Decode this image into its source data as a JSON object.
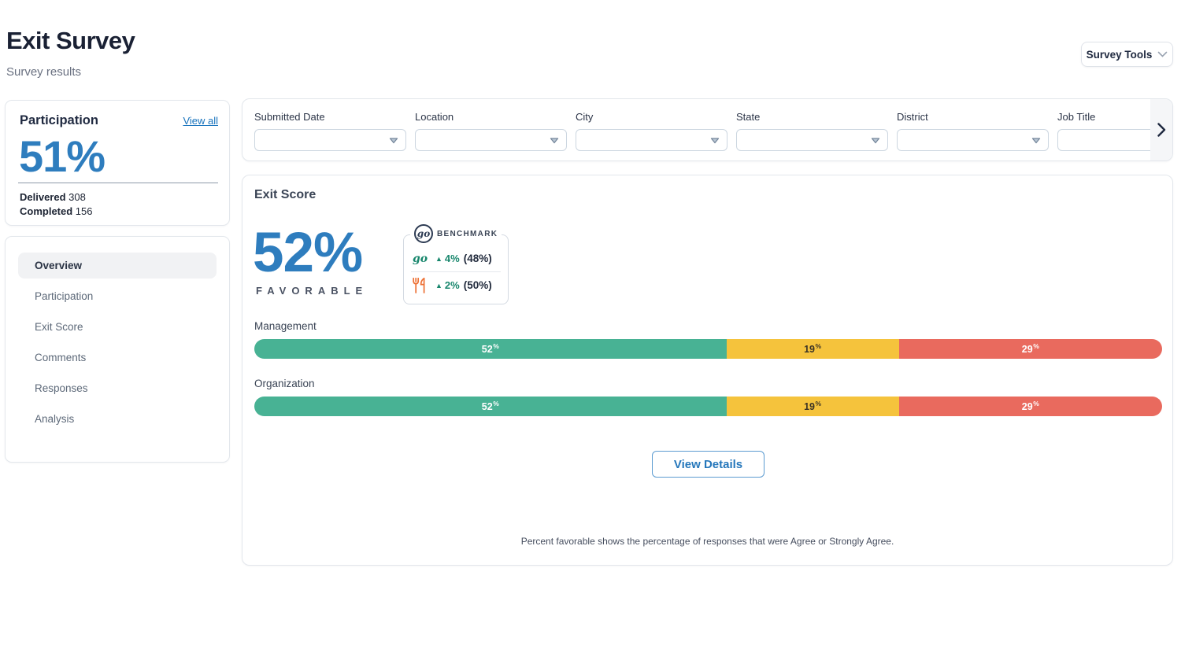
{
  "page": {
    "title": "Exit Survey",
    "subtitle": "Survey results"
  },
  "toolbar": {
    "survey_tools_label": "Survey Tools"
  },
  "participation": {
    "title": "Participation",
    "view_all": "View all",
    "percent": "51%",
    "delivered_label": "Delivered",
    "delivered_value": "308",
    "completed_label": "Completed",
    "completed_value": "156"
  },
  "sidebar": {
    "active_item": "Overview",
    "items": [
      {
        "label": "Overview"
      },
      {
        "label": "Participation"
      },
      {
        "label": "Exit Score"
      },
      {
        "label": "Comments"
      },
      {
        "label": "Responses"
      },
      {
        "label": "Analysis"
      }
    ]
  },
  "filters": {
    "fields": [
      {
        "label": "Submitted Date",
        "value": ""
      },
      {
        "label": "Location",
        "value": ""
      },
      {
        "label": "City",
        "value": ""
      },
      {
        "label": "State",
        "value": ""
      },
      {
        "label": "District",
        "value": ""
      },
      {
        "label": "Job Title",
        "value": ""
      }
    ]
  },
  "exit_score": {
    "title": "Exit Score",
    "score_value": "52%",
    "score_caption": "FAVORABLE",
    "benchmark": {
      "heading": "BENCHMARK",
      "logo_text": "go",
      "rows": [
        {
          "icon": "go-logo",
          "icon_text": "go",
          "delta": "4%",
          "benchmark_value": "(48%)"
        },
        {
          "icon": "fork-knife-icon",
          "delta": "2%",
          "benchmark_value": "(50%)"
        }
      ]
    },
    "bars": [
      {
        "label": "Management",
        "segments": [
          {
            "name": "favorable",
            "value": 52,
            "num": "52",
            "sym": "%"
          },
          {
            "name": "neutral",
            "value": 19,
            "num": "19",
            "sym": "%"
          },
          {
            "name": "unfavorable",
            "value": 29,
            "num": "29",
            "sym": "%"
          }
        ]
      },
      {
        "label": "Organization",
        "segments": [
          {
            "name": "favorable",
            "value": 52,
            "num": "52",
            "sym": "%"
          },
          {
            "name": "neutral",
            "value": 19,
            "num": "19",
            "sym": "%"
          },
          {
            "name": "unfavorable",
            "value": 29,
            "num": "29",
            "sym": "%"
          }
        ]
      }
    ],
    "view_details_label": "View Details",
    "footnote": "Percent favorable shows the percentage of responses that were Agree or Strongly Agree."
  },
  "colors": {
    "accent_blue": "#2E7DBE",
    "link_blue": "#1873BD",
    "favorable_green": "#48B294",
    "neutral_yellow": "#F5C33C",
    "unfavorable_red": "#E96A5E",
    "benchmark_teal": "#17866C",
    "brand_orange": "#ED7034",
    "title_navy": "#1A2134"
  }
}
